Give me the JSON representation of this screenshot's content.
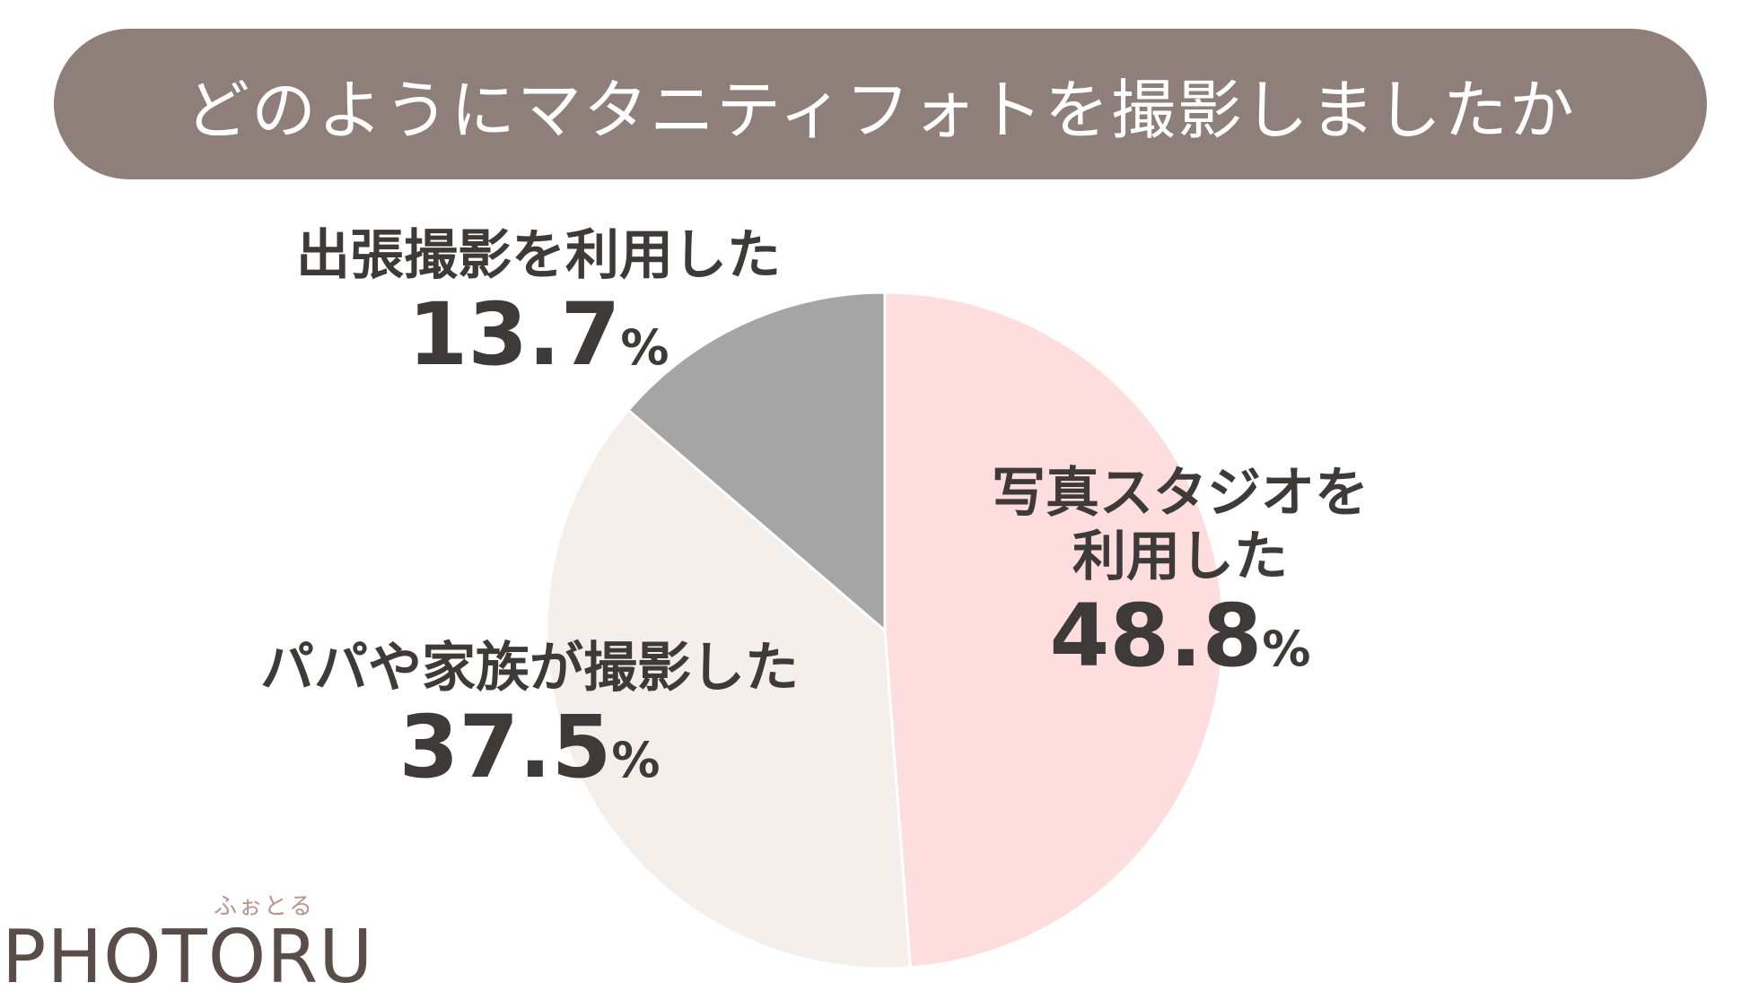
{
  "header": {
    "title": "どのようにマタニティフォトを撮影しましたか"
  },
  "chart_data": {
    "type": "pie",
    "title": "どのようにマタニティフォトを撮影しましたか",
    "unit": "%",
    "start_position": "12 o'clock",
    "direction": "clockwise",
    "slices": [
      {
        "label": "写真スタジオを利用した",
        "value": 48.8,
        "value_text": "48.8",
        "color": "#fddddd"
      },
      {
        "label": "パパや家族が撮影した",
        "value": 37.5,
        "value_text": "37.5",
        "color": "#f4efeb"
      },
      {
        "label": "出張撮影を利用した",
        "value": 13.7,
        "value_text": "13.7",
        "color": "#a5a5a5"
      }
    ]
  },
  "labels": [
    {
      "lines": [
        "写真スタジオを",
        "利用した"
      ],
      "value": "48.8",
      "unit": "%"
    },
    {
      "lines": [
        "パパや家族が撮影した"
      ],
      "value": "37.5",
      "unit": "%"
    },
    {
      "lines": [
        "出張撮影を利用した"
      ],
      "value": "13.7",
      "unit": "%"
    }
  ],
  "logo": {
    "kana": "ふぉとる",
    "text": "PHOTORU"
  }
}
